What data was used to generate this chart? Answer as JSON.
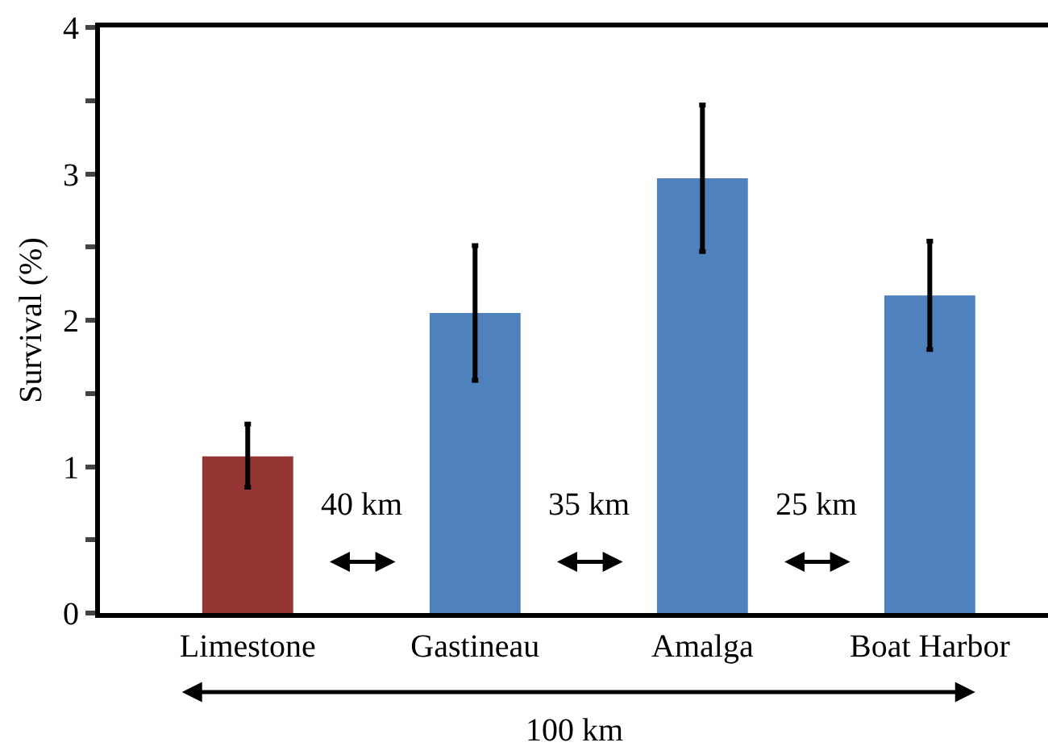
{
  "chart_data": {
    "type": "bar",
    "ylabel": "Survival (%)",
    "categories": [
      "Limestone",
      "Gastineau",
      "Amalga",
      "Boat Harbor"
    ],
    "values": [
      1.07,
      2.05,
      2.97,
      2.17
    ],
    "colors": [
      "#963634",
      "#4f81bd",
      "#4f81bd",
      "#4f81bd"
    ],
    "errors": [
      [
        0.86,
        1.29
      ],
      [
        1.59,
        2.51
      ],
      [
        2.47,
        3.47
      ],
      [
        1.8,
        2.54
      ]
    ],
    "ylim": [
      0,
      4
    ],
    "yticks": [
      0,
      {
        "value": 0.5,
        "label": null
      },
      1,
      {
        "value": 1.5,
        "label": null
      },
      2,
      {
        "value": 2.5,
        "label": null
      },
      3,
      {
        "value": 3.5,
        "label": null
      },
      4
    ],
    "annotations": [
      "40 km",
      "35 km",
      "25 km",
      "100 km"
    ]
  }
}
